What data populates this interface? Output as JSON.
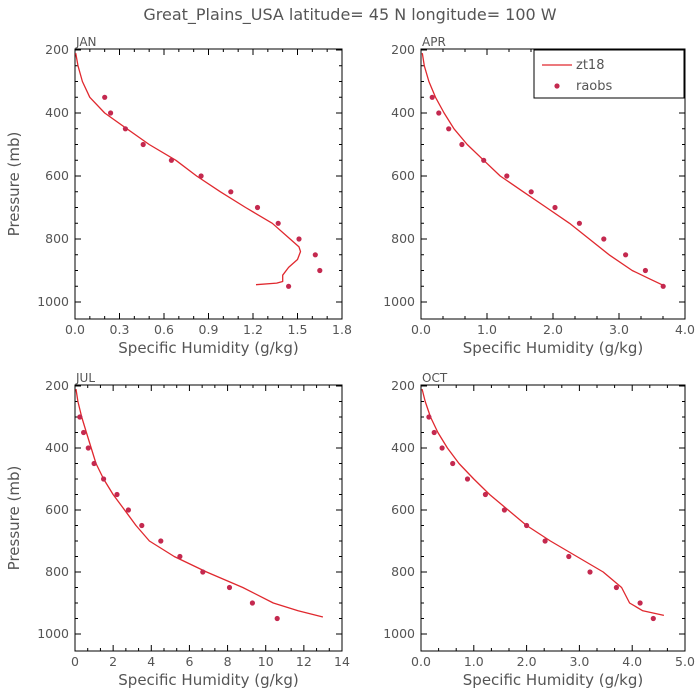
{
  "figure": {
    "title": "Great_Plains_USA  latitude= 45 N longitude= 100 W"
  },
  "colors": {
    "line": "#e0282e",
    "points": "#c4294f",
    "axis": "#000000",
    "text": "#555555"
  },
  "chart_data": [
    {
      "type": "line",
      "panel": "JAN",
      "xlabel": "Specific Humidity (g/kg)",
      "ylabel": "Pressure (mb)",
      "xlim": [
        0,
        1.8
      ],
      "ylim": [
        200,
        1000
      ],
      "y_inverted": true,
      "xticks": [
        "0.0",
        "0.3",
        "0.6",
        "0.9",
        "1.2",
        "1.5",
        "1.8"
      ],
      "yticks": [
        "200",
        "400",
        "600",
        "800",
        "1000"
      ],
      "legend": null,
      "series": [
        {
          "name": "zt18",
          "kind": "line",
          "points": [
            [
              0.005,
              210
            ],
            [
              0.02,
              250
            ],
            [
              0.05,
              300
            ],
            [
              0.1,
              350
            ],
            [
              0.2,
              400
            ],
            [
              0.35,
              450
            ],
            [
              0.5,
              500
            ],
            [
              0.68,
              550
            ],
            [
              0.82,
              600
            ],
            [
              0.98,
              650
            ],
            [
              1.15,
              700
            ],
            [
              1.33,
              750
            ],
            [
              1.45,
              800
            ],
            [
              1.51,
              825
            ],
            [
              1.52,
              840
            ],
            [
              1.5,
              865
            ],
            [
              1.44,
              890
            ],
            [
              1.4,
              915
            ],
            [
              1.4,
              935
            ],
            [
              1.36,
              940
            ],
            [
              1.22,
              945
            ]
          ]
        },
        {
          "name": "raobs",
          "kind": "points",
          "points": [
            [
              0.2,
              350
            ],
            [
              0.24,
              400
            ],
            [
              0.34,
              450
            ],
            [
              0.46,
              500
            ],
            [
              0.65,
              550
            ],
            [
              0.85,
              600
            ],
            [
              1.05,
              650
            ],
            [
              1.23,
              700
            ],
            [
              1.37,
              750
            ],
            [
              1.51,
              800
            ],
            [
              1.62,
              850
            ],
            [
              1.65,
              900
            ],
            [
              1.44,
              950
            ]
          ]
        }
      ]
    },
    {
      "type": "line",
      "panel": "APR",
      "xlabel": "Specific Humidity (g/kg)",
      "ylabel": "",
      "xlim": [
        0,
        4.0
      ],
      "ylim": [
        200,
        1000
      ],
      "y_inverted": true,
      "xticks": [
        "0.0",
        "1.0",
        "2.0",
        "3.0",
        "4.0"
      ],
      "yticks": [
        "200",
        "400",
        "600",
        "800",
        "1000"
      ],
      "legend": {
        "position": "top-right",
        "entries": [
          "zt18",
          "raobs"
        ]
      },
      "series": [
        {
          "name": "zt18",
          "kind": "line",
          "points": [
            [
              0.02,
              210
            ],
            [
              0.05,
              250
            ],
            [
              0.12,
              300
            ],
            [
              0.22,
              350
            ],
            [
              0.35,
              400
            ],
            [
              0.5,
              450
            ],
            [
              0.7,
              500
            ],
            [
              0.95,
              550
            ],
            [
              1.2,
              600
            ],
            [
              1.55,
              650
            ],
            [
              1.9,
              700
            ],
            [
              2.25,
              750
            ],
            [
              2.55,
              800
            ],
            [
              2.85,
              850
            ],
            [
              3.2,
              900
            ],
            [
              3.45,
              925
            ],
            [
              3.65,
              945
            ]
          ]
        },
        {
          "name": "raobs",
          "kind": "points",
          "points": [
            [
              0.17,
              350
            ],
            [
              0.27,
              400
            ],
            [
              0.42,
              450
            ],
            [
              0.62,
              500
            ],
            [
              0.95,
              550
            ],
            [
              1.3,
              600
            ],
            [
              1.67,
              650
            ],
            [
              2.03,
              700
            ],
            [
              2.4,
              750
            ],
            [
              2.77,
              800
            ],
            [
              3.1,
              850
            ],
            [
              3.4,
              900
            ],
            [
              3.67,
              950
            ]
          ]
        }
      ]
    },
    {
      "type": "line",
      "panel": "JUL",
      "xlabel": "Specific Humidity (g/kg)",
      "ylabel": "Pressure (mb)",
      "xlim": [
        0,
        14
      ],
      "ylim": [
        200,
        1000
      ],
      "y_inverted": true,
      "xticks": [
        "0",
        "2",
        "4",
        "6",
        "8",
        "10",
        "12",
        "14"
      ],
      "yticks": [
        "200",
        "400",
        "600",
        "800",
        "1000"
      ],
      "legend": null,
      "series": [
        {
          "name": "zt18",
          "kind": "line",
          "points": [
            [
              0.05,
              210
            ],
            [
              0.15,
              250
            ],
            [
              0.35,
              300
            ],
            [
              0.6,
              350
            ],
            [
              0.85,
              400
            ],
            [
              1.1,
              450
            ],
            [
              1.5,
              500
            ],
            [
              2.0,
              550
            ],
            [
              2.6,
              600
            ],
            [
              3.2,
              650
            ],
            [
              3.9,
              700
            ],
            [
              5.2,
              750
            ],
            [
              6.9,
              800
            ],
            [
              8.8,
              850
            ],
            [
              10.4,
              900
            ],
            [
              11.7,
              925
            ],
            [
              13.0,
              945
            ]
          ]
        },
        {
          "name": "raobs",
          "kind": "points",
          "points": [
            [
              0.25,
              300
            ],
            [
              0.45,
              350
            ],
            [
              0.7,
              400
            ],
            [
              1.0,
              450
            ],
            [
              1.5,
              500
            ],
            [
              2.2,
              550
            ],
            [
              2.8,
              600
            ],
            [
              3.5,
              650
            ],
            [
              4.5,
              700
            ],
            [
              5.5,
              750
            ],
            [
              6.7,
              800
            ],
            [
              8.1,
              850
            ],
            [
              9.3,
              900
            ],
            [
              10.6,
              950
            ]
          ]
        }
      ]
    },
    {
      "type": "line",
      "panel": "OCT",
      "xlabel": "Specific Humidity (g/kg)",
      "ylabel": "",
      "xlim": [
        0,
        5.0
      ],
      "ylim": [
        200,
        1000
      ],
      "y_inverted": true,
      "xticks": [
        "0.0",
        "1.0",
        "2.0",
        "3.0",
        "4.0",
        "5.0"
      ],
      "yticks": [
        "200",
        "400",
        "600",
        "800",
        "1000"
      ],
      "legend": null,
      "series": [
        {
          "name": "zt18",
          "kind": "line",
          "points": [
            [
              0.02,
              210
            ],
            [
              0.08,
              250
            ],
            [
              0.18,
              300
            ],
            [
              0.32,
              350
            ],
            [
              0.5,
              400
            ],
            [
              0.72,
              450
            ],
            [
              1.0,
              500
            ],
            [
              1.3,
              550
            ],
            [
              1.65,
              600
            ],
            [
              2.0,
              650
            ],
            [
              2.45,
              700
            ],
            [
              2.95,
              750
            ],
            [
              3.45,
              800
            ],
            [
              3.8,
              850
            ],
            [
              3.95,
              900
            ],
            [
              4.2,
              925
            ],
            [
              4.6,
              940
            ]
          ]
        },
        {
          "name": "raobs",
          "kind": "points",
          "points": [
            [
              0.15,
              300
            ],
            [
              0.25,
              350
            ],
            [
              0.4,
              400
            ],
            [
              0.6,
              450
            ],
            [
              0.88,
              500
            ],
            [
              1.22,
              550
            ],
            [
              1.58,
              600
            ],
            [
              2.0,
              650
            ],
            [
              2.35,
              700
            ],
            [
              2.8,
              750
            ],
            [
              3.2,
              800
            ],
            [
              3.7,
              850
            ],
            [
              4.15,
              900
            ],
            [
              4.4,
              950
            ]
          ]
        }
      ]
    }
  ]
}
